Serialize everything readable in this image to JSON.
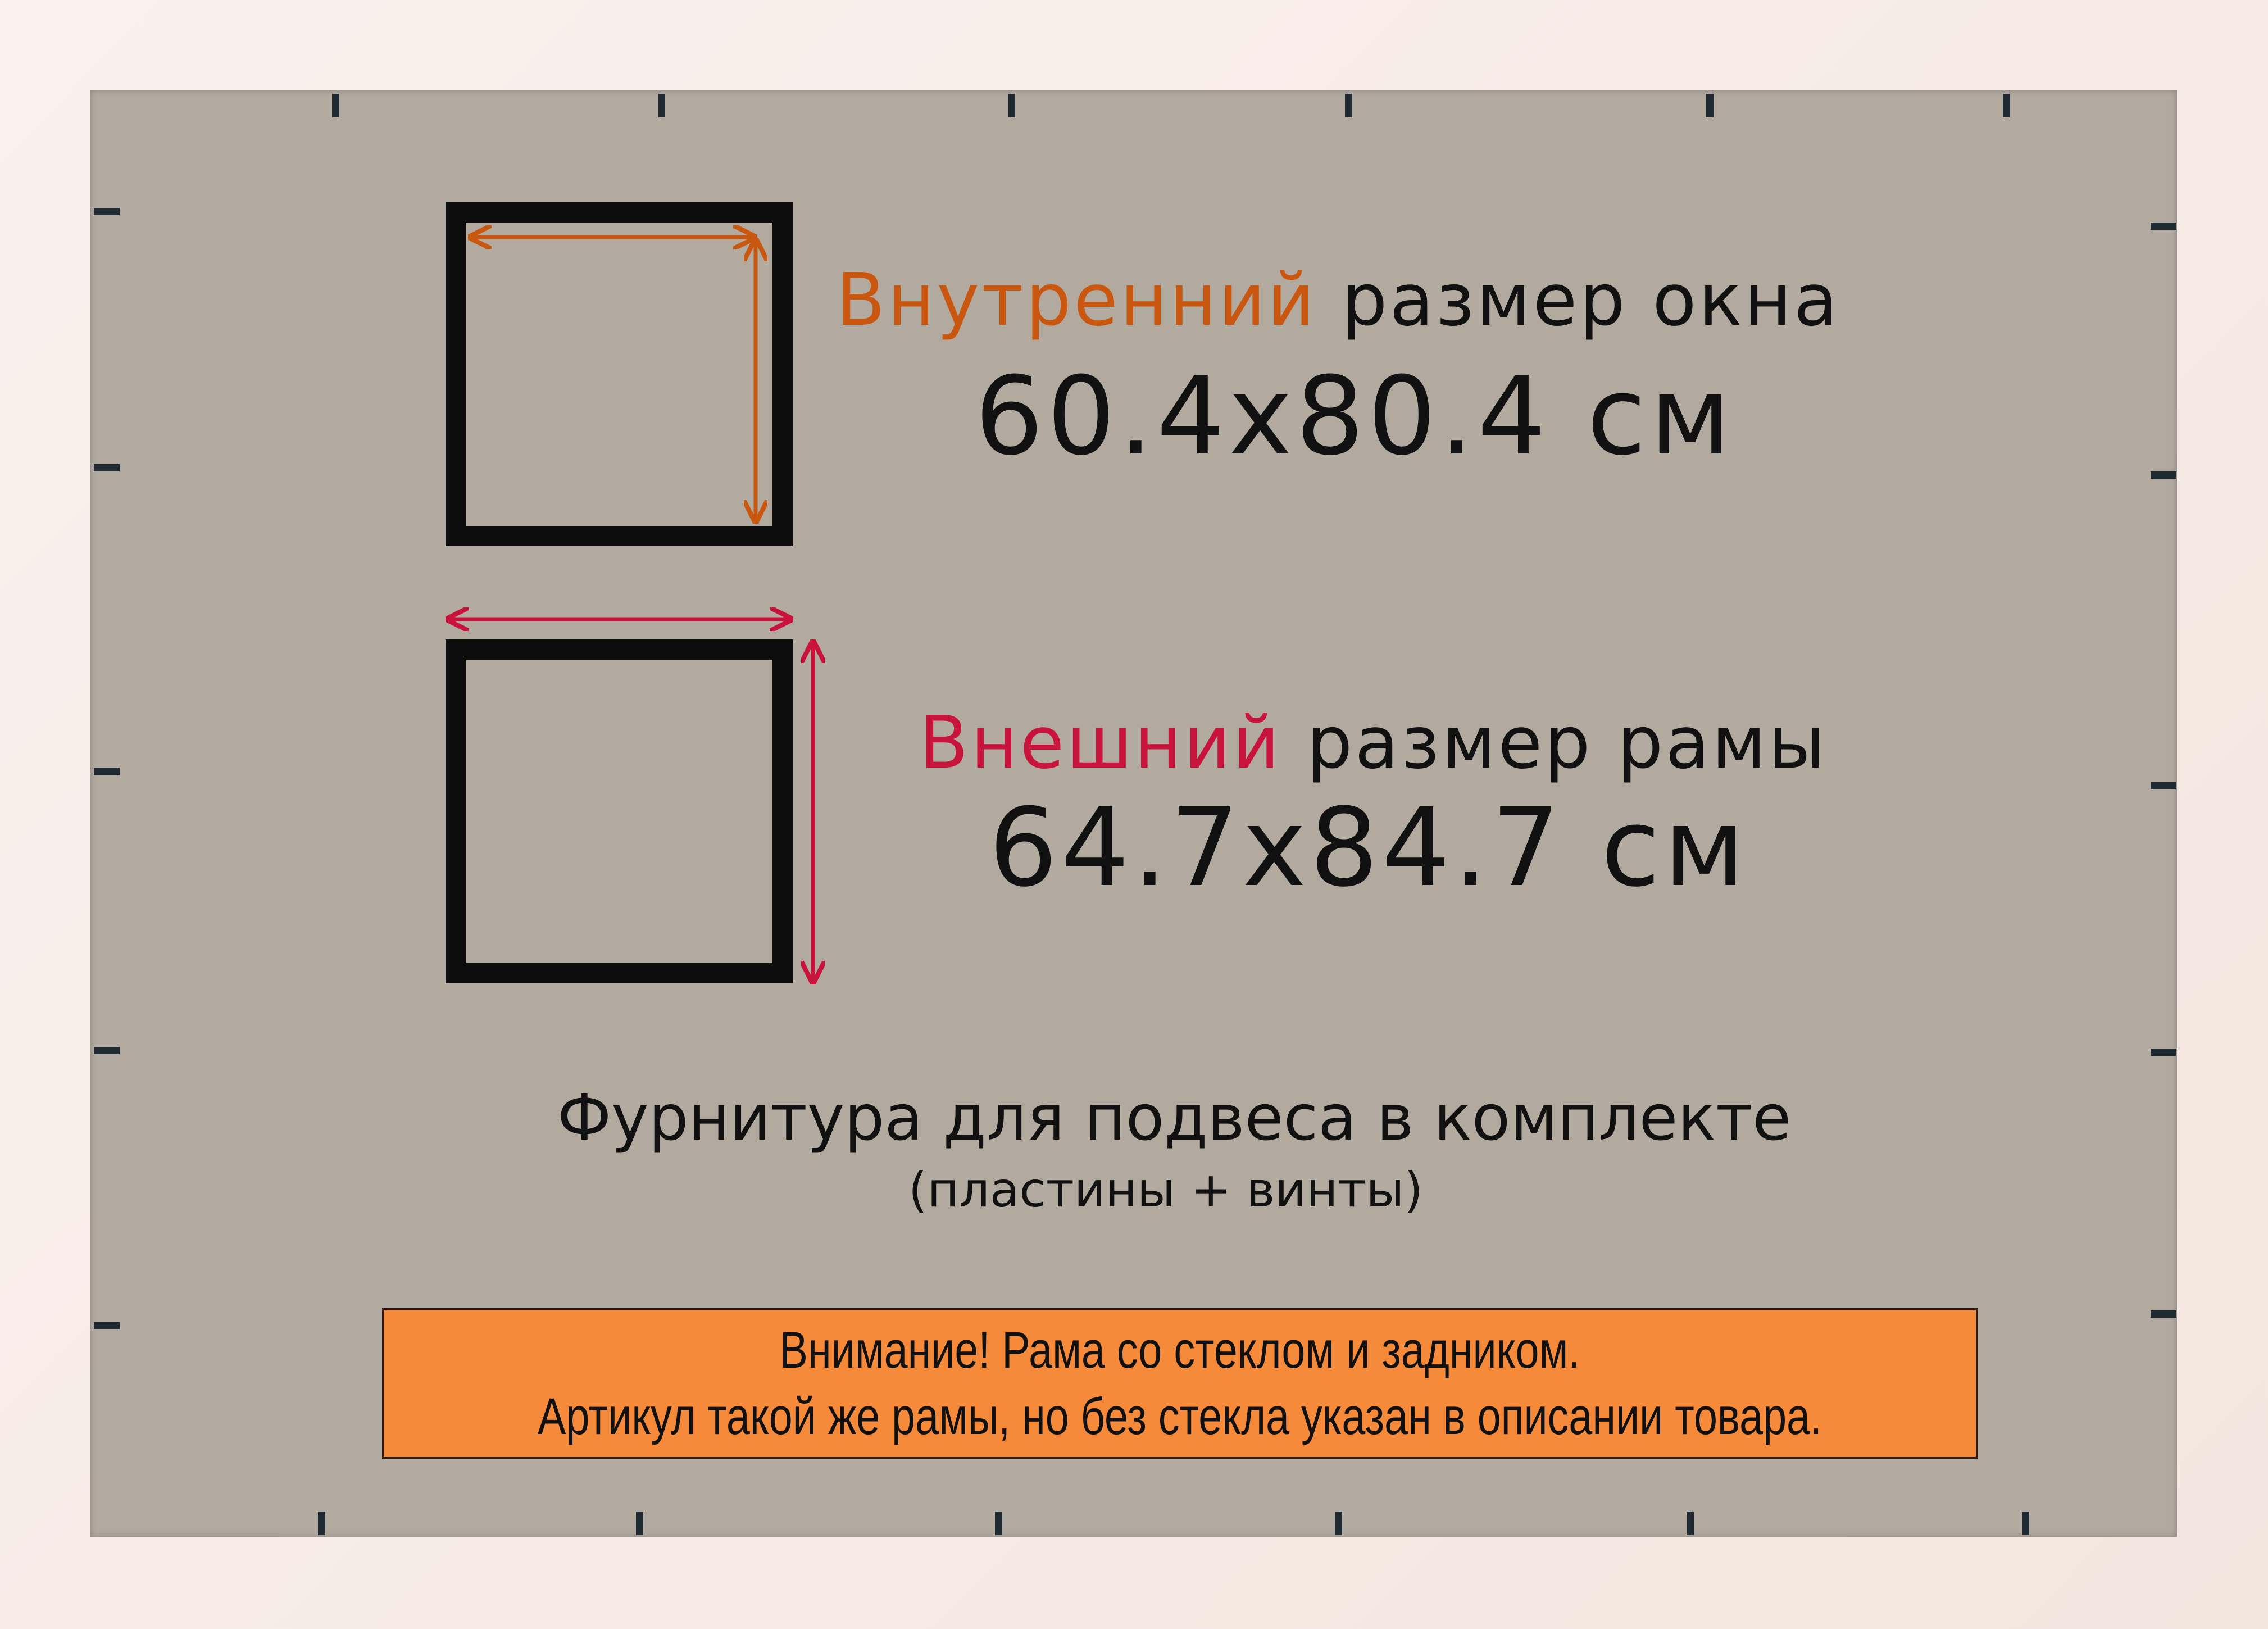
{
  "inner": {
    "highlight": "Внутренний",
    "rest": " размер окна",
    "size": "60.4x80.4 см"
  },
  "outer": {
    "highlight": "Внешний",
    "rest": " размер рамы",
    "size": "64.7x84.7 см"
  },
  "hardware": {
    "title": "Фурнитура для подвеса в комплекте",
    "note": "(пластины + винты)"
  },
  "notice": {
    "line1": "Внимание! Рама со стеклом и задником.",
    "line2": "Артикул такой же рамы, но без стекла указан в описании товара."
  },
  "colors": {
    "inner_accent": "#c9570f",
    "outer_accent": "#c8143c",
    "notice_bg": "#f68a3b",
    "board": "#b2aa9f",
    "frame": "#f6ebe5"
  }
}
